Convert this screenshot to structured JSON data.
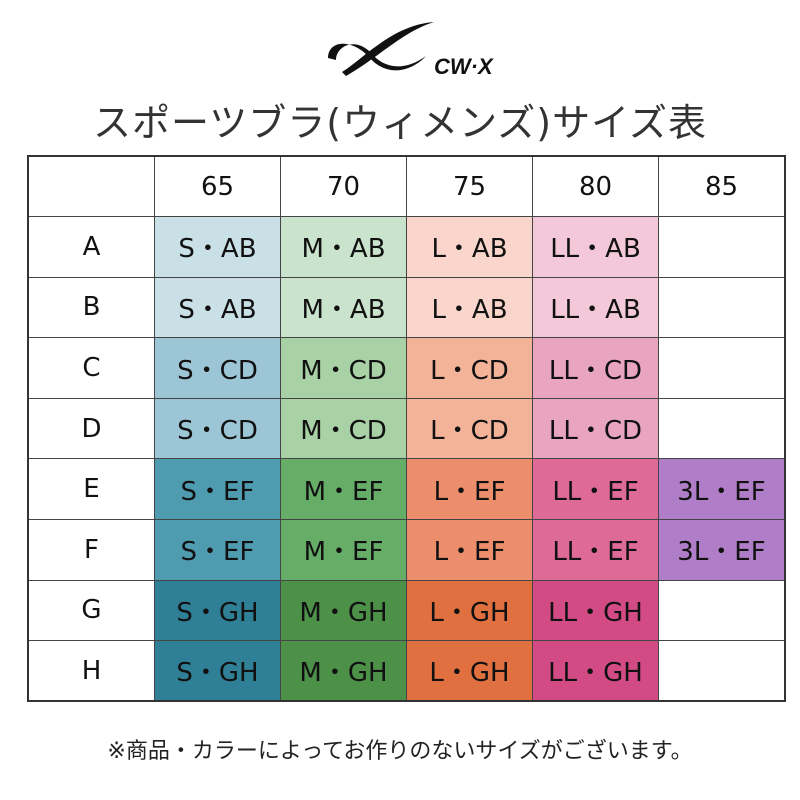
{
  "logo": {
    "text": "CW-X"
  },
  "title": "スポーツブラ(ウィメンズ)サイズ表",
  "table": {
    "columns": [
      "65",
      "70",
      "75",
      "80",
      "85"
    ],
    "rows": [
      {
        "label": "A",
        "cells": [
          "S・AB",
          "M・AB",
          "L・AB",
          "LL・AB",
          ""
        ]
      },
      {
        "label": "B",
        "cells": [
          "S・AB",
          "M・AB",
          "L・AB",
          "LL・AB",
          ""
        ]
      },
      {
        "label": "C",
        "cells": [
          "S・CD",
          "M・CD",
          "L・CD",
          "LL・CD",
          ""
        ]
      },
      {
        "label": "D",
        "cells": [
          "S・CD",
          "M・CD",
          "L・CD",
          "LL・CD",
          ""
        ]
      },
      {
        "label": "E",
        "cells": [
          "S・EF",
          "M・EF",
          "L・EF",
          "LL・EF",
          "3L・EF"
        ]
      },
      {
        "label": "F",
        "cells": [
          "S・EF",
          "M・EF",
          "L・EF",
          "LL・EF",
          "3L・EF"
        ]
      },
      {
        "label": "G",
        "cells": [
          "S・GH",
          "M・GH",
          "L・GH",
          "LL・GH",
          ""
        ]
      },
      {
        "label": "H",
        "cells": [
          "S・GH",
          "M・GH",
          "L・GH",
          "LL・GH",
          ""
        ]
      }
    ],
    "colors": {
      "S": {
        "AB": "#c9e0e6",
        "CD": "#9cc6d6",
        "EF": "#4f9cb0",
        "GH": "#2f7f96"
      },
      "M": {
        "AB": "#c9e3cc",
        "CD": "#a9d1a6",
        "EF": "#66ad68",
        "GH": "#4d9048"
      },
      "L": {
        "AB": "#f9d5cb",
        "CD": "#f2b399",
        "EF": "#ec8e6c",
        "GH": "#e0703f"
      },
      "LL": {
        "AB": "#f3c8d8",
        "CD": "#e9a5c0",
        "EF": "#de6a98",
        "GH": "#d24b85"
      },
      "3L": {
        "EF": "#b07ec8"
      }
    }
  },
  "note": "※商品・カラーによってお作りのないサイズがございます。"
}
